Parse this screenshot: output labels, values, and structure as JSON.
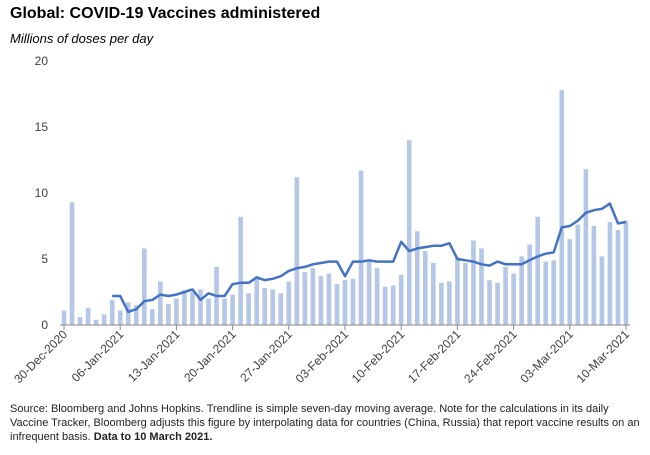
{
  "chart_data": {
    "type": "bar_line",
    "title": "Global: COVID-19 Vaccines administered",
    "subtitle": "Millions of doses per day",
    "source": "Source: Bloomberg and Johns Hopkins.  Trendline is simple seven-day  moving average.  Note for the calculations in its daily Vaccine Tracker, Bloomberg adjusts this figure by interpolating data for countries (China, Russia) that report vaccine results on an infrequent basis.",
    "data_note": "Data to 10 March  2021.",
    "categories": [
      "30-Dec-2020",
      null,
      null,
      null,
      null,
      null,
      null,
      "06-Jan-2021",
      null,
      null,
      null,
      null,
      null,
      null,
      "13-Jan-2021",
      null,
      null,
      null,
      null,
      null,
      null,
      "20-Jan-2021",
      null,
      null,
      null,
      null,
      null,
      null,
      "27-Jan-2021",
      null,
      null,
      null,
      null,
      null,
      null,
      "03-Feb-2021",
      null,
      null,
      null,
      null,
      null,
      null,
      "10-Feb-2021",
      null,
      null,
      null,
      null,
      null,
      null,
      "17-Feb-2021",
      null,
      null,
      null,
      null,
      null,
      null,
      "24-Feb-2021",
      null,
      null,
      null,
      null,
      null,
      null,
      "03-Mar-2021",
      null,
      null,
      null,
      null,
      null,
      null,
      "10-Mar-2021"
    ],
    "series": [
      {
        "kind": "bar",
        "color": "#b4c7e7",
        "values": [
          1.1,
          9.3,
          0.6,
          1.3,
          0.4,
          0.8,
          1.9,
          1.1,
          1.7,
          1.5,
          5.8,
          1.2,
          3.3,
          1.6,
          2.0,
          2.6,
          2.5,
          2.7,
          2.0,
          4.4,
          2.0,
          2.3,
          8.2,
          2.4,
          3.7,
          2.8,
          2.7,
          2.4,
          3.3,
          11.2,
          4.0,
          4.3,
          3.7,
          3.9,
          3.1,
          3.4,
          3.5,
          11.7,
          4.8,
          4.3,
          2.9,
          3.0,
          3.8,
          14.0,
          7.1,
          5.6,
          4.7,
          3.2,
          3.3,
          5.1,
          4.7,
          6.4,
          5.8,
          3.4,
          3.2,
          4.4,
          3.9,
          5.2,
          6.1,
          8.2,
          4.8,
          4.9,
          17.8,
          6.5,
          7.6,
          11.8,
          7.5,
          5.2,
          7.8,
          7.2,
          7.9
        ]
      },
      {
        "kind": "line",
        "color": "#4472c4",
        "values": [
          null,
          null,
          null,
          null,
          null,
          null,
          2.2,
          2.2,
          1.0,
          1.2,
          1.8,
          1.9,
          2.3,
          2.2,
          2.3,
          2.5,
          2.7,
          1.9,
          2.4,
          2.2,
          2.2,
          3.1,
          3.2,
          3.2,
          3.6,
          3.4,
          3.5,
          3.7,
          4.1,
          4.3,
          4.4,
          4.6,
          4.7,
          4.8,
          4.8,
          3.7,
          4.8,
          4.8,
          4.9,
          4.8,
          4.8,
          4.8,
          6.3,
          5.6,
          5.8,
          5.9,
          6.0,
          6.0,
          6.2,
          5.0,
          4.9,
          4.8,
          4.6,
          4.5,
          4.8,
          4.6,
          4.6,
          4.6,
          4.9,
          5.2,
          5.4,
          5.5,
          7.4,
          7.5,
          7.9,
          8.5,
          8.7,
          8.8,
          9.2,
          7.7,
          7.8
        ]
      }
    ],
    "ylim": [
      0,
      20
    ],
    "yticks": [
      0,
      5,
      10,
      15,
      20
    ],
    "grid": false
  }
}
